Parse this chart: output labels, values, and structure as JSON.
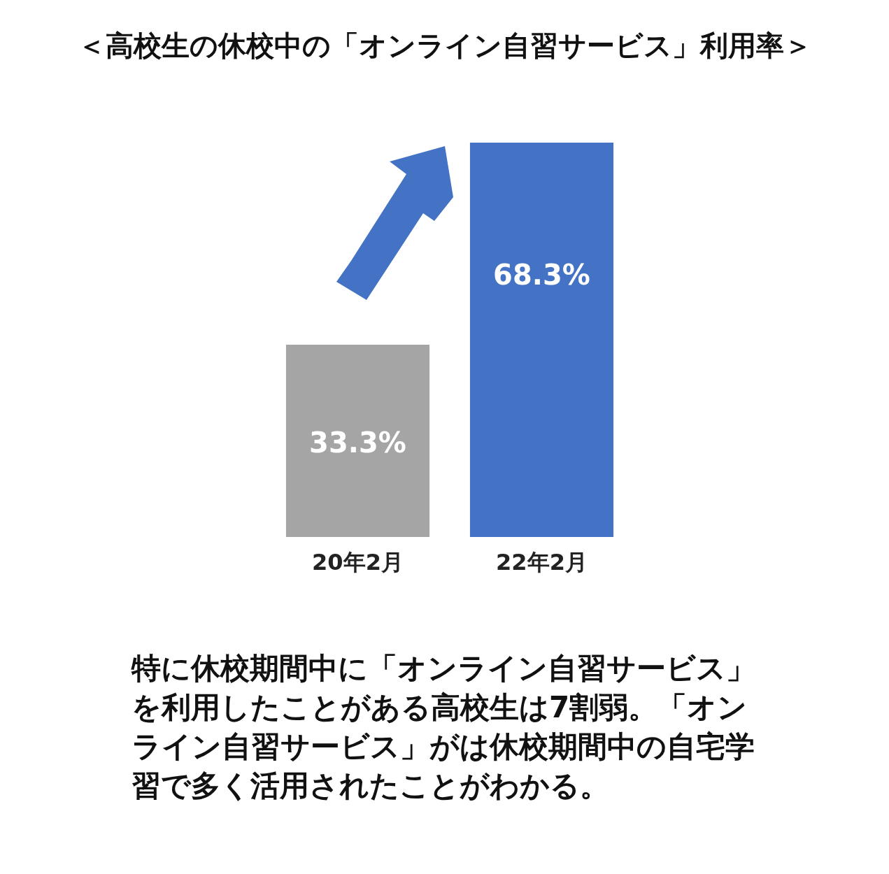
{
  "chart_data": {
    "type": "bar",
    "title": "＜高校生の休校中の「オンライン自習サービス」利用率＞",
    "categories": [
      "20年2月",
      "22年2月"
    ],
    "values": [
      33.3,
      68.3
    ],
    "colors": [
      "#a5a5a5",
      "#4472c4"
    ],
    "value_labels": [
      "33.3%",
      "68.3%"
    ],
    "annotations": [
      "特に休校期間中に「オンライン自習サービス」を利用したことがある高校生は7割弱。「オンライン自習サービス」がは休校期間中の自宅学習で多く活用されたことがわかる。"
    ]
  }
}
